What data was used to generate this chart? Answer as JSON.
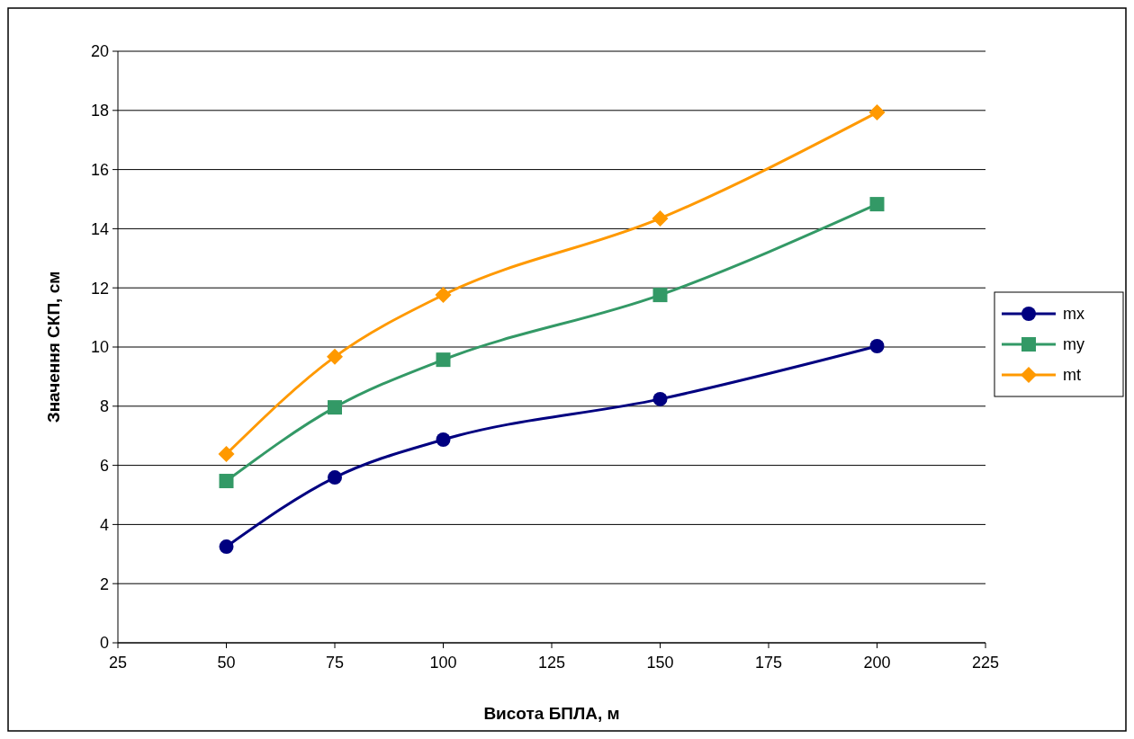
{
  "chart_data": {
    "type": "line",
    "xlabel": "Висота БПЛА, м",
    "ylabel": "Значення СКП, см",
    "x": [
      50,
      75,
      100,
      150,
      200
    ],
    "series": [
      {
        "name": "mx",
        "color": "#000080",
        "marker": "circle",
        "values": [
          3.25,
          5.59,
          6.87,
          8.24,
          10.03
        ]
      },
      {
        "name": "my",
        "color": "#339966",
        "marker": "square",
        "values": [
          5.47,
          7.96,
          9.57,
          11.76,
          14.83
        ]
      },
      {
        "name": "mt",
        "color": "#ff9900",
        "marker": "diamond",
        "values": [
          6.38,
          9.67,
          11.76,
          14.35,
          17.93
        ]
      }
    ],
    "xlim": [
      25,
      225
    ],
    "xticks": [
      25,
      50,
      75,
      100,
      125,
      150,
      175,
      200,
      225
    ],
    "ylim": [
      0,
      20
    ],
    "yticks": [
      0,
      2,
      4,
      6,
      8,
      10,
      12,
      14,
      16,
      18,
      20
    ],
    "grid": "y",
    "legend": "right"
  }
}
